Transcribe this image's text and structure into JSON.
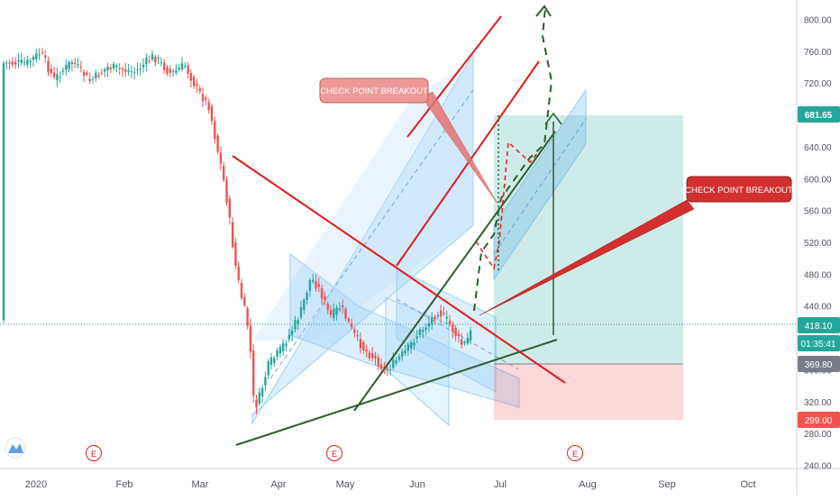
{
  "chart_data": {
    "type": "candlestick",
    "x_ticks": [
      "2020",
      "Feb",
      "Mar",
      "Apr",
      "May",
      "Jun",
      "Jul",
      "Aug",
      "Sep",
      "Oct"
    ],
    "y_ticks": [
      "240.00",
      "280.00",
      "320.00",
      "360.00",
      "400.00",
      "440.00",
      "480.00",
      "520.00",
      "560.00",
      "600.00",
      "640.00",
      "680.00",
      "720.00",
      "760.00",
      "800.00"
    ],
    "ylim": [
      238,
      828
    ],
    "price_labels": {
      "target": {
        "value": "681.65",
        "color": "#26a69a"
      },
      "last": {
        "value": "418.10",
        "color": "#26a69a"
      },
      "countdown": {
        "value": "01:35:41",
        "color": "#26a69a"
      },
      "entry": {
        "value": "369.80",
        "color": "#787b86"
      },
      "stop": {
        "value": "299.00",
        "color": "#ef5350"
      }
    },
    "last_price": 418.1,
    "callouts": [
      {
        "text": "CHECK POINT BREAKOUT",
        "style": "light"
      },
      {
        "text": "CHECK POINT BREAKOUT",
        "style": "dark"
      }
    ],
    "event_markers": [
      "E",
      "E",
      "E"
    ],
    "colors": {
      "up": "#26a69a",
      "down": "#ef5350",
      "trend": "#e31b1b",
      "support": "#2e5e2e",
      "channel": "#90caf9"
    }
  }
}
